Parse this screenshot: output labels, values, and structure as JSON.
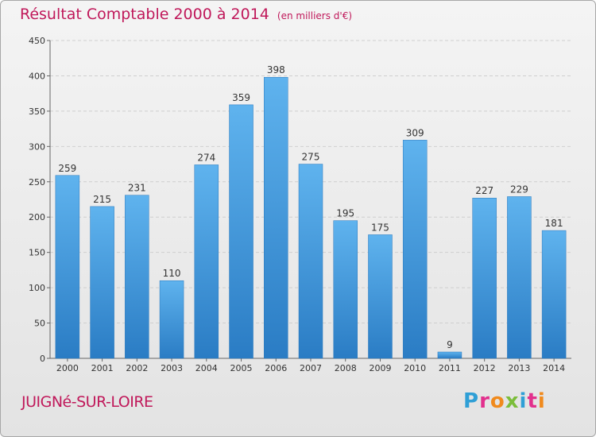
{
  "title": "Résultat Comptable 2000 à 2014",
  "subtitle": "(en milliers d'€)",
  "place": "JUIGNé-SUR-LOIRE",
  "brand": "Proxiti",
  "brand_colors": [
    "#2f9fd6",
    "#e2308d",
    "#f08a1d",
    "#7bbd3a",
    "#2f9fd6",
    "#e2308d",
    "#f08a1d"
  ],
  "chart_data": {
    "type": "bar",
    "title": "Résultat Comptable 2000 à 2014",
    "subtitle": "(en milliers d'€)",
    "categories": [
      "2000",
      "2001",
      "2002",
      "2003",
      "2004",
      "2005",
      "2006",
      "2007",
      "2008",
      "2009",
      "2010",
      "2011",
      "2012",
      "2013",
      "2014"
    ],
    "values": [
      259,
      215,
      231,
      110,
      274,
      359,
      398,
      275,
      195,
      175,
      309,
      9,
      227,
      229,
      181
    ],
    "ylim": [
      0,
      450
    ],
    "yticks": [
      0,
      50,
      100,
      150,
      200,
      250,
      300,
      350,
      400,
      450
    ],
    "grid": true,
    "bar_color": "#3a8fd6"
  }
}
